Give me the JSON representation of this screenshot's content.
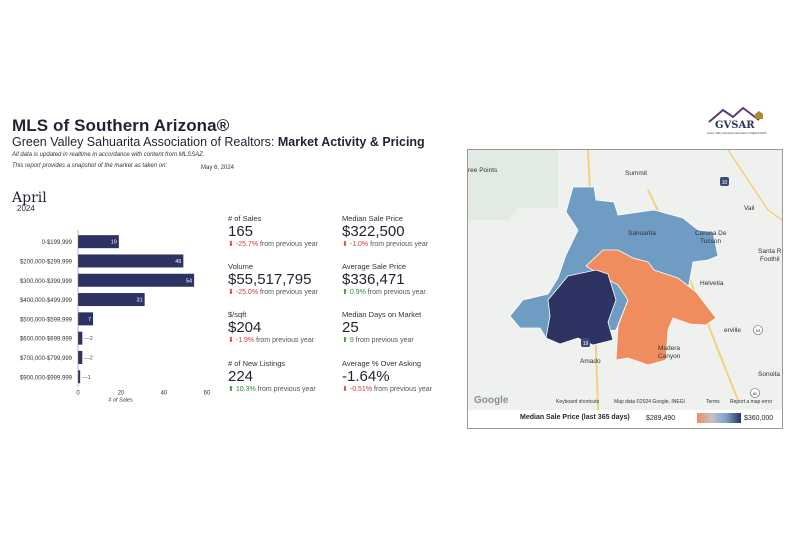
{
  "header": {
    "title": "MLS of Southern Arizona®",
    "subtitle_prefix": "Green Valley Sahuarita Association of Realtors: ",
    "subtitle_bold": "Market Activity & Pricing",
    "note1": "All data is updated in realtime in accordance with content from MLSSAZ.",
    "note2": "This report provides a snapshot of the market as taken on:",
    "snapshot_date": "May 6, 2024",
    "logo_text": "GVSAR",
    "logo_sub": "Green Valley Sahuarita Association of REALTORS®"
  },
  "period": {
    "month": "April",
    "year": "2024"
  },
  "chart_data": {
    "type": "bar",
    "orientation": "horizontal",
    "categories": [
      "0-$199,999",
      "$200,000-$299,999",
      "$300,000-$399,999",
      "$400,000-$499,999",
      "$500,000-$599,999",
      "$600,000-$699,999",
      "$700,000-$799,999",
      "$900,000-$999,999"
    ],
    "values": [
      19,
      49,
      54,
      31,
      7,
      2,
      2,
      1
    ],
    "xlabel": "# of Sales",
    "xlim": [
      0,
      60
    ],
    "xticks": [
      "0",
      "20",
      "40",
      "60"
    ],
    "bar_color": "#2c3262"
  },
  "stats": [
    {
      "label": "# of Sales",
      "value": "165",
      "change": "-25.7%",
      "suffix": "from previous year",
      "dir": "down"
    },
    {
      "label": "Median Sale Price",
      "value": "$322,500",
      "change": "-1.0%",
      "suffix": "from previous year",
      "dir": "down"
    },
    {
      "label": "Volume",
      "value": "$55,517,795",
      "change": "-25.0%",
      "suffix": "from previous year",
      "dir": "down"
    },
    {
      "label": "Average Sale Price",
      "value": "$336,471",
      "change": "0.9%",
      "suffix": "from previous year",
      "dir": "up"
    },
    {
      "label": "$/sqft",
      "value": "$204",
      "change": "-1.9%",
      "suffix": "from previous year",
      "dir": "down"
    },
    {
      "label": "Median Days on Market",
      "value": "25",
      "change": "9",
      "suffix": "from previous year",
      "dir": "up"
    },
    {
      "label": "# of New Listings",
      "value": "224",
      "change": "10.3%",
      "suffix": "from previous year",
      "dir": "up"
    },
    {
      "label": "Average % Over Asking",
      "value": "-1.64%",
      "change": "-0.51%",
      "suffix": "from previous year",
      "dir": "down"
    }
  ],
  "map": {
    "places": {
      "three_points": "ree Points",
      "summit": "Summit",
      "sahuarita": "Sahuarita",
      "corona": "Corona De",
      "tucson": "Tucson",
      "vail": "Vail",
      "santa_r": "Santa R",
      "foothil": "Foothil",
      "helvetia": "Helvetia",
      "amado": "Amado",
      "madera": "Madera",
      "canyon": "Canyon",
      "erville": "erville",
      "sonoita": "Sonoita"
    },
    "highways": {
      "i19": "19",
      "i10": "10",
      "i83": "83",
      "i82": "82"
    },
    "footer": {
      "google": "Google",
      "shortcuts": "Keyboard shortcuts",
      "mapdata": "Map data ©2024 Google, INEGI",
      "terms": "Terms",
      "report": "Report a map error"
    },
    "legend": {
      "title": "Median Sale Price (last 365 days)",
      "min": "$289,490",
      "max": "$360,000"
    },
    "colors": {
      "dark": "#2c3262",
      "blue": "#6e9cc2",
      "orange": "#f08d5f"
    }
  }
}
